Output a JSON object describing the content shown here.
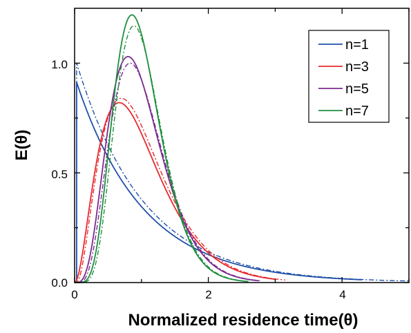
{
  "chart_data": {
    "type": "line",
    "xlabel": "Normalized residence time(θ)",
    "ylabel": "E(θ)",
    "xlim": [
      0,
      5
    ],
    "ylim": [
      0,
      1.25
    ],
    "x_ticks": [
      "0",
      "2",
      "4"
    ],
    "y_ticks": [
      "0.0",
      "0.5",
      "1.0"
    ],
    "grid": false,
    "legend_position": "top-right",
    "legend": [
      "n=1",
      "n=3",
      "n=5",
      "n=7"
    ],
    "series": [
      {
        "name": "n=1",
        "n": 1,
        "color": "#1f4fa8",
        "x_max_solid": 4.3,
        "x_max_dashed": 5.0,
        "peak_solid": 0.94,
        "peak_dashed": 1.0
      },
      {
        "name": "n=3",
        "n": 3,
        "color": "#e8282d",
        "x_max_solid": 3.0,
        "x_max_dashed": 3.15,
        "peak_solid": 0.82,
        "peak_dashed": 0.84
      },
      {
        "name": "n=5",
        "n": 5,
        "color": "#7a2b8e",
        "x_max_solid": 2.75,
        "x_max_dashed": 2.8,
        "peak_solid": 1.03,
        "peak_dashed": 1.0
      },
      {
        "name": "n=7",
        "n": 7,
        "color": "#1e8f3e",
        "x_max_solid": 2.6,
        "x_max_dashed": 2.55,
        "peak_solid": 1.22,
        "peak_dashed": 1.17
      }
    ]
  }
}
